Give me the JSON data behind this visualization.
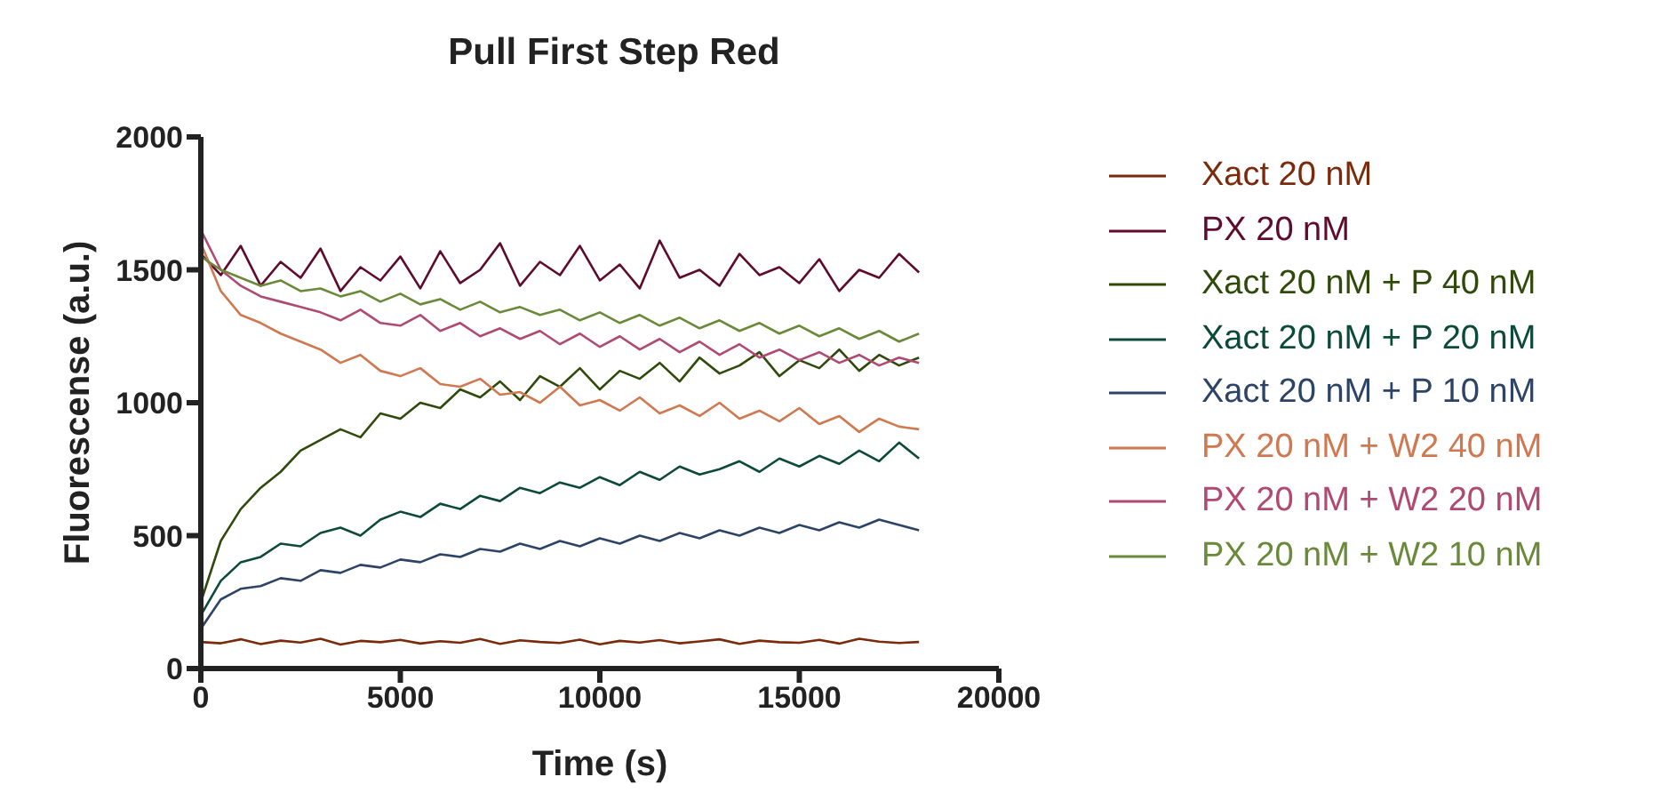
{
  "chart_data": {
    "type": "line",
    "title": "Pull First Step Red",
    "xlabel": "Time (s)",
    "ylabel": "Fluorescense (a.u.)",
    "x": [
      0,
      500,
      1000,
      1500,
      2000,
      2500,
      3000,
      3500,
      4000,
      4500,
      5000,
      5500,
      6000,
      6500,
      7000,
      7500,
      8000,
      8500,
      9000,
      9500,
      10000,
      10500,
      11000,
      11500,
      12000,
      12500,
      13000,
      13500,
      14000,
      14500,
      15000,
      15500,
      16000,
      16500,
      17000,
      17500,
      18000
    ],
    "xlim": [
      0,
      20000
    ],
    "xticks": [
      0,
      5000,
      10000,
      15000,
      20000
    ],
    "ylim": [
      0,
      2000
    ],
    "yticks": [
      0,
      500,
      1000,
      1500,
      2000
    ],
    "grid": false,
    "legend": "right",
    "series": [
      {
        "name": "Xact 20 nM",
        "color": "#7b2a0c",
        "values": [
          100,
          95,
          110,
          92,
          105,
          98,
          112,
          90,
          104,
          99,
          108,
          94,
          103,
          97,
          111,
          93,
          106,
          100,
          96,
          109,
          91,
          104,
          98,
          107,
          95,
          102,
          110,
          93,
          105,
          99,
          97,
          108,
          94,
          112,
          101,
          96,
          100
        ]
      },
      {
        "name": "PX 20 nM",
        "color": "#5e0b2e",
        "values": [
          1560,
          1480,
          1590,
          1440,
          1530,
          1470,
          1580,
          1420,
          1510,
          1460,
          1550,
          1430,
          1570,
          1450,
          1500,
          1600,
          1440,
          1530,
          1480,
          1590,
          1460,
          1520,
          1430,
          1610,
          1470,
          1500,
          1440,
          1560,
          1480,
          1510,
          1450,
          1540,
          1420,
          1500,
          1470,
          1560,
          1490
        ]
      },
      {
        "name": "Xact 20 nM + P 40 nM",
        "color": "#2f4a0b",
        "values": [
          250,
          480,
          600,
          680,
          740,
          820,
          860,
          900,
          870,
          960,
          940,
          1000,
          980,
          1050,
          1020,
          1080,
          1010,
          1100,
          1060,
          1130,
          1050,
          1120,
          1090,
          1150,
          1080,
          1170,
          1110,
          1140,
          1190,
          1100,
          1160,
          1130,
          1200,
          1120,
          1180,
          1140,
          1170
        ]
      },
      {
        "name": "Xact 20 nM + P 20 nM",
        "color": "#0d4a3a",
        "values": [
          200,
          330,
          400,
          420,
          470,
          460,
          510,
          530,
          500,
          560,
          590,
          570,
          620,
          600,
          650,
          630,
          680,
          660,
          700,
          680,
          720,
          690,
          740,
          710,
          760,
          730,
          750,
          780,
          740,
          790,
          760,
          800,
          770,
          820,
          780,
          850,
          790
        ]
      },
      {
        "name": "Xact 20 nM + P 10 nM",
        "color": "#2d4466",
        "values": [
          150,
          260,
          300,
          310,
          340,
          330,
          370,
          360,
          390,
          380,
          410,
          400,
          430,
          420,
          450,
          440,
          470,
          450,
          480,
          460,
          490,
          470,
          500,
          480,
          510,
          490,
          520,
          500,
          530,
          510,
          540,
          520,
          550,
          530,
          560,
          540,
          520
        ]
      },
      {
        "name": "PX 20 nM + W2 40 nM",
        "color": "#d07850",
        "values": [
          1600,
          1420,
          1330,
          1300,
          1260,
          1230,
          1200,
          1150,
          1180,
          1120,
          1100,
          1130,
          1070,
          1060,
          1090,
          1030,
          1040,
          1000,
          1060,
          990,
          1010,
          970,
          1020,
          960,
          990,
          950,
          1000,
          940,
          970,
          930,
          980,
          920,
          950,
          890,
          940,
          910,
          900
        ]
      },
      {
        "name": "PX 20 nM + W2 20 nM",
        "color": "#b04a72",
        "values": [
          1650,
          1500,
          1440,
          1400,
          1380,
          1360,
          1340,
          1310,
          1350,
          1300,
          1290,
          1330,
          1270,
          1300,
          1250,
          1280,
          1240,
          1270,
          1220,
          1260,
          1210,
          1250,
          1200,
          1240,
          1190,
          1230,
          1180,
          1220,
          1170,
          1200,
          1160,
          1190,
          1150,
          1180,
          1140,
          1170,
          1150
        ]
      },
      {
        "name": "PX 20 nM + W2 10 nM",
        "color": "#6a8a3a",
        "values": [
          1550,
          1500,
          1470,
          1440,
          1460,
          1420,
          1430,
          1400,
          1420,
          1380,
          1410,
          1370,
          1390,
          1350,
          1380,
          1340,
          1360,
          1330,
          1350,
          1310,
          1340,
          1300,
          1330,
          1290,
          1320,
          1280,
          1310,
          1270,
          1300,
          1260,
          1290,
          1250,
          1280,
          1240,
          1270,
          1230,
          1260
        ]
      }
    ]
  }
}
